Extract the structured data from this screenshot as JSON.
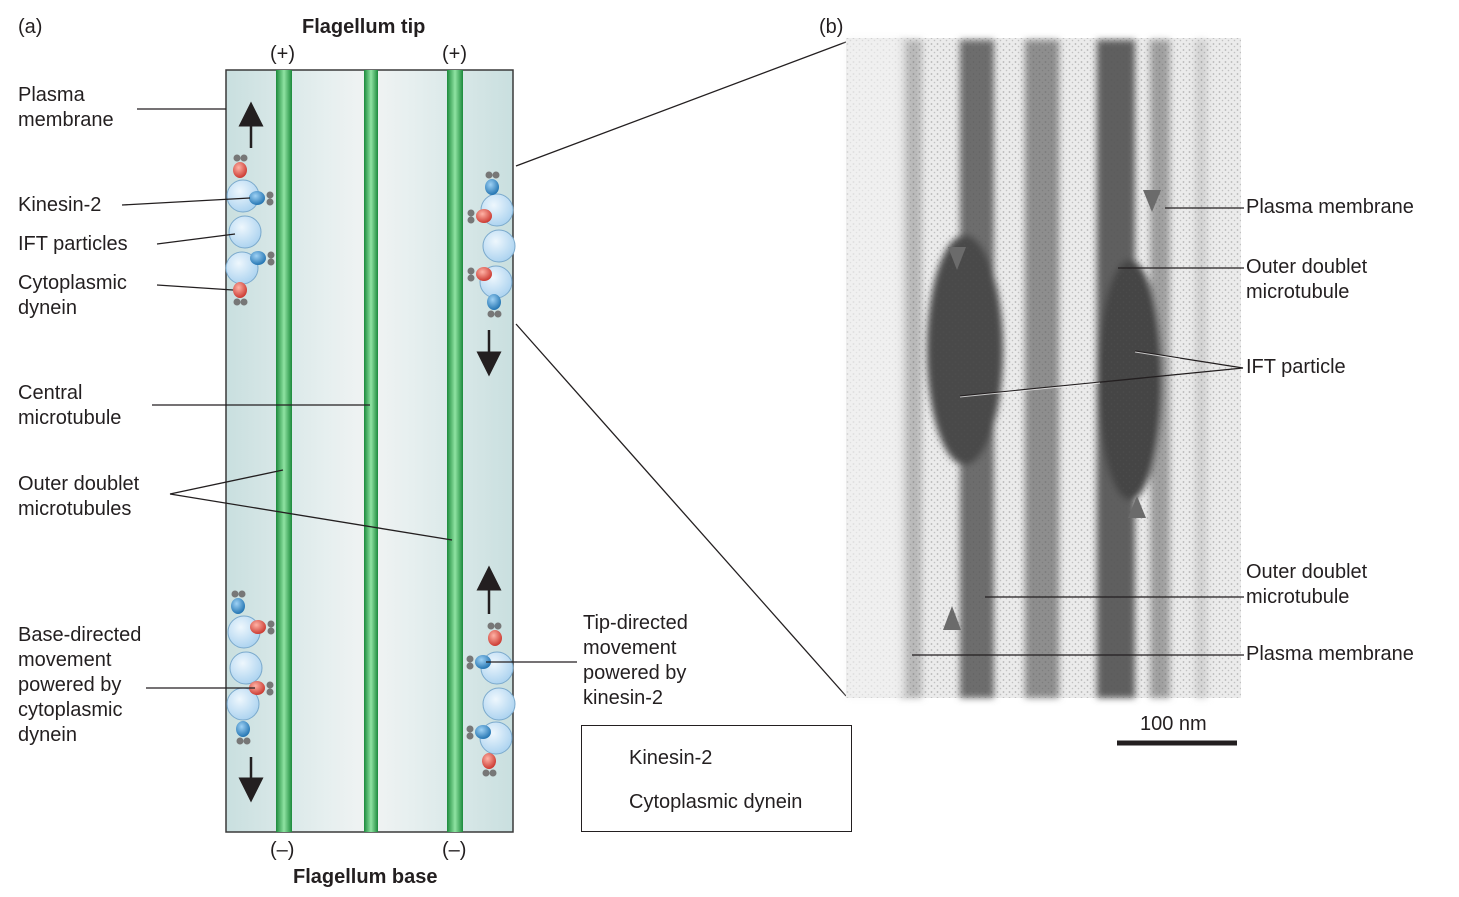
{
  "panel_a": {
    "letter": "(a)",
    "top_title": "Flagellum tip",
    "bottom_title": "Flagellum base",
    "plus_left": "(+)",
    "plus_right": "(+)",
    "minus_left": "(–)",
    "minus_right": "(–)",
    "labels": {
      "plasma_membrane": [
        "Plasma",
        "membrane"
      ],
      "kinesin": "Kinesin-2",
      "ift_particles": "IFT particles",
      "cyto_dynein": [
        "Cytoplasmic",
        "dynein"
      ],
      "central_mt": [
        "Central",
        "microtubule"
      ],
      "outer_doublets": [
        "Outer doublet",
        "microtubules"
      ],
      "base_directed": [
        "Base-directed",
        "movement",
        "powered by",
        "cytoplasmic",
        "dynein"
      ],
      "tip_directed": [
        "Tip-directed",
        "movement",
        "powered by",
        "kinesin-2"
      ]
    },
    "legend": {
      "kinesin": "Kinesin-2",
      "dynein": "Cytoplasmic dynein"
    }
  },
  "panel_b": {
    "letter": "(b)",
    "labels": {
      "plasma_membrane_top": "Plasma membrane",
      "outer_doublet_top": [
        "Outer doublet",
        "microtubule"
      ],
      "ift_particle": "IFT particle",
      "outer_doublet_bottom": [
        "Outer doublet",
        "microtubule"
      ],
      "plasma_membrane_bottom": "Plasma membrane"
    },
    "scale_bar": "100 nm"
  },
  "colors": {
    "flagellum_fill": "#cfe3e3",
    "microtubule_green": "#2aa14a",
    "kinesin_blue": "#2f8fd0",
    "dynein_red": "#e0453a",
    "ift_particle": "#cfe6f7"
  }
}
